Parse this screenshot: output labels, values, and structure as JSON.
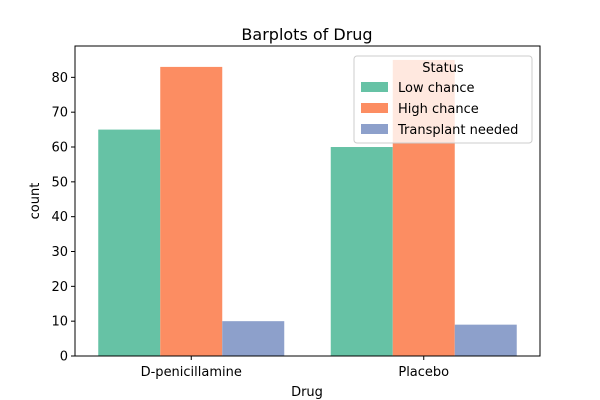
{
  "chart_data": {
    "type": "bar",
    "title": "Barplots of Drug",
    "xlabel": "Drug",
    "ylabel": "count",
    "categories": [
      "D-penicillamine",
      "Placebo"
    ],
    "series": [
      {
        "name": "Low chance",
        "values": [
          65,
          60
        ],
        "color": "#66c2a5"
      },
      {
        "name": "High chance",
        "values": [
          83,
          85
        ],
        "color": "#fc8d62"
      },
      {
        "name": "Transplant needed",
        "values": [
          10,
          9
        ],
        "color": "#8da0cb"
      }
    ],
    "ylim": [
      0,
      89
    ],
    "yticks": [
      0,
      10,
      20,
      30,
      40,
      50,
      60,
      70,
      80
    ],
    "grid": false,
    "legend": {
      "title": "Status",
      "placement": "top-right"
    }
  }
}
